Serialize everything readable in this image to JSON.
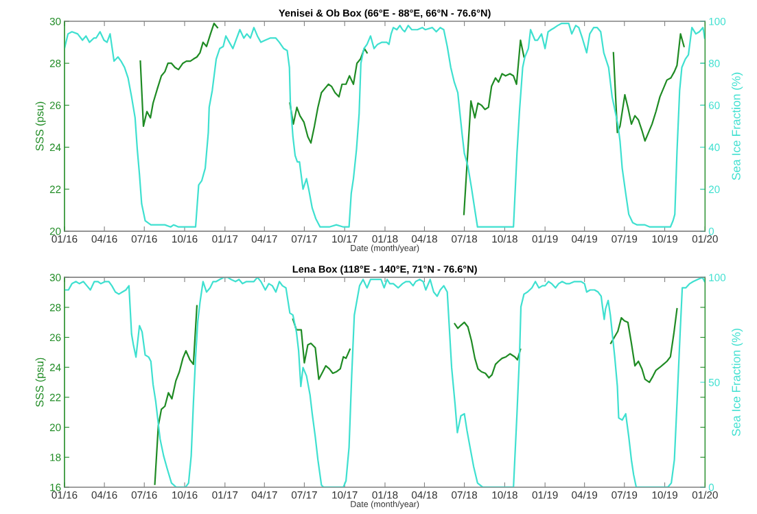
{
  "chart_data": [
    {
      "type": "line",
      "title": "Yenisei & Ob Box (66°E - 88°E, 66°N - 76.6°N)",
      "xlabel": "Date (month/year)",
      "ylabel": "SSS (psu)",
      "y2label": "Sea Ice Fraction (%)",
      "xlim": [
        "2016-01-01",
        "2020-01-01"
      ],
      "xticks": [
        {
          "value": "2016-01-01",
          "label": "01/16"
        },
        {
          "value": "2016-04-01",
          "label": "04/16"
        },
        {
          "value": "2016-07-01",
          "label": "07/16"
        },
        {
          "value": "2016-10-01",
          "label": "10/16"
        },
        {
          "value": "2017-01-01",
          "label": "01/17"
        },
        {
          "value": "2017-04-01",
          "label": "04/17"
        },
        {
          "value": "2017-07-01",
          "label": "07/17"
        },
        {
          "value": "2017-10-01",
          "label": "10/17"
        },
        {
          "value": "2018-01-01",
          "label": "01/18"
        },
        {
          "value": "2018-04-01",
          "label": "04/18"
        },
        {
          "value": "2018-07-01",
          "label": "07/18"
        },
        {
          "value": "2018-10-01",
          "label": "10/18"
        },
        {
          "value": "2019-01-01",
          "label": "01/19"
        },
        {
          "value": "2019-04-01",
          "label": "04/19"
        },
        {
          "value": "2019-07-01",
          "label": "07/19"
        },
        {
          "value": "2019-10-01",
          "label": "10/19"
        },
        {
          "value": "2020-01-01",
          "label": "01/20"
        }
      ],
      "ylim": [
        20,
        30
      ],
      "yticks": [
        20,
        22,
        24,
        26,
        28,
        30
      ],
      "y2lim": [
        0,
        100
      ],
      "y2ticks": [
        0,
        20,
        40,
        60,
        80,
        100
      ],
      "series": [
        {
          "color": "#1f8b24",
          "x": [
            "2016-06-22",
            "2016-06-29",
            "2016-07-07",
            "2016-07-15",
            "2016-07-21",
            "2016-07-31",
            "2016-08-09",
            "2016-08-17",
            "2016-08-24",
            "2016-09-01",
            "2016-09-09",
            "2016-09-17",
            "2016-09-27",
            "2016-10-05",
            "2016-10-14",
            "2016-10-21",
            "2016-10-29",
            "2016-11-05",
            "2016-11-12",
            "2016-11-20",
            "2016-11-29",
            "2016-12-07",
            "2016-12-15",
            "2017-03-01",
            "2017-05-29",
            "2017-06-06",
            "2017-06-14",
            "2017-06-21",
            "2017-06-30",
            "2017-07-09",
            "2017-07-16",
            "2017-07-24",
            "2017-08-01",
            "2017-08-09",
            "2017-08-17",
            "2017-08-25",
            "2017-09-01",
            "2017-09-09",
            "2017-09-18",
            "2017-09-25",
            "2017-10-04",
            "2017-10-12",
            "2017-10-21",
            "2017-10-29",
            "2017-11-06",
            "2017-11-15",
            "2017-11-21",
            "2018-03-01",
            "2018-06-30",
            "2018-07-16",
            "2018-07-25",
            "2018-08-01",
            "2018-08-09",
            "2018-08-17",
            "2018-08-25",
            "2018-09-01",
            "2018-09-10",
            "2018-09-17",
            "2018-09-25",
            "2018-10-03",
            "2018-10-13",
            "2018-10-21",
            "2018-10-28",
            "2018-11-06",
            "2018-11-14",
            "2019-03-01",
            "2019-06-06",
            "2019-06-15",
            "2019-06-21",
            "2019-07-02",
            "2019-07-09",
            "2019-07-17",
            "2019-07-25",
            "2019-08-02",
            "2019-08-10",
            "2019-08-17",
            "2019-08-25",
            "2019-09-02",
            "2019-09-11",
            "2019-09-20",
            "2019-09-28",
            "2019-10-06",
            "2019-10-15",
            "2019-10-23",
            "2019-10-29",
            "2019-11-06",
            "2019-11-14"
          ],
          "values": [
            28.1,
            25.0,
            25.7,
            25.4,
            26.1,
            26.8,
            27.4,
            27.6,
            28.0,
            28.0,
            27.8,
            27.7,
            28.0,
            28.1,
            28.1,
            28.2,
            28.3,
            28.5,
            29.0,
            28.8,
            29.4,
            29.9,
            29.7,
            null,
            26.1,
            25.1,
            25.9,
            25.5,
            25.2,
            24.5,
            24.2,
            25.0,
            25.9,
            26.6,
            26.8,
            27.0,
            26.9,
            26.6,
            26.4,
            27.0,
            27.0,
            27.4,
            27.0,
            28.0,
            28.2,
            28.7,
            28.5,
            null,
            20.8,
            26.2,
            25.4,
            26.1,
            26.0,
            25.8,
            25.9,
            26.9,
            27.3,
            27.1,
            27.5,
            27.4,
            27.5,
            27.4,
            27.0,
            29.1,
            28.3,
            null,
            28.5,
            24.7,
            25.0,
            26.5,
            25.9,
            25.1,
            25.5,
            25.3,
            24.8,
            24.3,
            24.7,
            25.1,
            25.7,
            26.4,
            26.8,
            27.2,
            27.3,
            27.6,
            27.9,
            29.4,
            28.8
          ]
        },
        {
          "color": "#3fe0d0",
          "axis": "y2",
          "x": [
            "2016-01-01",
            "2016-01-09",
            "2016-01-18",
            "2016-01-31",
            "2016-02-11",
            "2016-02-19",
            "2016-02-27",
            "2016-03-08",
            "2016-03-13",
            "2016-03-22",
            "2016-03-31",
            "2016-04-07",
            "2016-04-14",
            "2016-04-23",
            "2016-05-02",
            "2016-05-09",
            "2016-05-17",
            "2016-05-25",
            "2016-06-02",
            "2016-06-10",
            "2016-06-15",
            "2016-06-20",
            "2016-06-25",
            "2016-07-03",
            "2016-07-16",
            "2016-08-01",
            "2016-08-17",
            "2016-08-30",
            "2016-09-06",
            "2016-09-17",
            "2016-10-03",
            "2016-10-13",
            "2016-10-26",
            "2016-11-02",
            "2016-11-09",
            "2016-11-17",
            "2016-11-24",
            "2016-11-26",
            "2016-12-03",
            "2016-12-12",
            "2016-12-20",
            "2016-12-28",
            "2017-01-03",
            "2017-01-11",
            "2017-01-19",
            "2017-01-26",
            "2017-02-04",
            "2017-02-13",
            "2017-02-20",
            "2017-02-28",
            "2017-03-08",
            "2017-03-16",
            "2017-03-24",
            "2017-04-03",
            "2017-04-14",
            "2017-04-27",
            "2017-05-05",
            "2017-05-15",
            "2017-05-23",
            "2017-05-28",
            "2017-05-30",
            "2017-06-05",
            "2017-06-10",
            "2017-06-15",
            "2017-06-20",
            "2017-06-28",
            "2017-07-06",
            "2017-07-11",
            "2017-07-19",
            "2017-07-27",
            "2017-08-06",
            "2017-08-27",
            "2017-09-12",
            "2017-09-28",
            "2017-10-11",
            "2017-10-16",
            "2017-10-21",
            "2017-10-28",
            "2017-11-03",
            "2017-11-07",
            "2017-11-14",
            "2017-11-21",
            "2017-11-29",
            "2017-12-07",
            "2017-12-15",
            "2017-12-25",
            "2018-01-05",
            "2018-01-10",
            "2018-01-15",
            "2018-01-20",
            "2018-01-28",
            "2018-02-04",
            "2018-02-10",
            "2018-02-15",
            "2018-02-23",
            "2018-03-03",
            "2018-03-16",
            "2018-03-27",
            "2018-04-03",
            "2018-04-19",
            "2018-04-28",
            "2018-05-07",
            "2018-05-15",
            "2018-05-23",
            "2018-05-31",
            "2018-06-08",
            "2018-06-16",
            "2018-06-21",
            "2018-06-26",
            "2018-07-01",
            "2018-07-09",
            "2018-07-17",
            "2018-07-25",
            "2018-07-31",
            "2018-08-17",
            "2018-09-07",
            "2018-09-28",
            "2018-10-21",
            "2018-10-29",
            "2018-11-04",
            "2018-11-11",
            "2018-11-16",
            "2018-11-24",
            "2018-11-29",
            "2018-12-09",
            "2018-12-15",
            "2018-12-24",
            "2019-01-01",
            "2019-01-08",
            "2019-01-15",
            "2019-01-23",
            "2019-01-30",
            "2019-02-08",
            "2019-02-24",
            "2019-03-03",
            "2019-03-12",
            "2019-03-19",
            "2019-03-27",
            "2019-04-06",
            "2019-04-13",
            "2019-04-22",
            "2019-04-30",
            "2019-05-08",
            "2019-05-15",
            "2019-05-26",
            "2019-06-03",
            "2019-06-11",
            "2019-06-16",
            "2019-06-21",
            "2019-06-26",
            "2019-07-04",
            "2019-07-11",
            "2019-07-20",
            "2019-07-30",
            "2019-08-17",
            "2019-08-28",
            "2019-09-12",
            "2019-10-03",
            "2019-10-14",
            "2019-10-20",
            "2019-10-24",
            "2019-10-29",
            "2019-11-04",
            "2019-11-09",
            "2019-11-17",
            "2019-11-24",
            "2019-12-02",
            "2019-12-11",
            "2019-12-19",
            "2019-12-27",
            "2019-12-29",
            "2019-12-31"
          ],
          "values": [
            87,
            94,
            95,
            94,
            91,
            93,
            90,
            92,
            92,
            95,
            91,
            90,
            94,
            81,
            83,
            81,
            78,
            73,
            64,
            54,
            39,
            27,
            13,
            5,
            3,
            3,
            3,
            2,
            3,
            2,
            2,
            2,
            2,
            22,
            24,
            30,
            47,
            59,
            67,
            82,
            87,
            88,
            93,
            90,
            87,
            91,
            96,
            92,
            94,
            92,
            97,
            93,
            90,
            91,
            92,
            92,
            90,
            87,
            86,
            78,
            62,
            45,
            36,
            33,
            33,
            20,
            25,
            20,
            11,
            6,
            2,
            2,
            3,
            2,
            2,
            18,
            25,
            39,
            56,
            80,
            87,
            89,
            93,
            87,
            89,
            90,
            90,
            89,
            94,
            97,
            96,
            98,
            96,
            95,
            98,
            96,
            96,
            97,
            96,
            97,
            95,
            97,
            96,
            88,
            78,
            71,
            66,
            56,
            46,
            37,
            31,
            21,
            10,
            2,
            2,
            2,
            2,
            2,
            37,
            58,
            78,
            83,
            87,
            96,
            91,
            91,
            94,
            87,
            95,
            96,
            97,
            98,
            99,
            99,
            94,
            98,
            97,
            92,
            85,
            94,
            97,
            97,
            95,
            85,
            78,
            64,
            56,
            51,
            43,
            30,
            18,
            8,
            4,
            3,
            3,
            2,
            2,
            2,
            2,
            5,
            8,
            38,
            67,
            78,
            82,
            84,
            97,
            94,
            95,
            97,
            95,
            92
          ]
        }
      ]
    },
    {
      "type": "line",
      "title": "Lena Box (118°E - 140°E, 71°N - 76.6°N)",
      "xlabel": "Date (month/year)",
      "ylabel": "SSS (psu)",
      "y2label": "Sea Ice Fraction (%)",
      "xlim": [
        "2016-01-01",
        "2020-01-01"
      ],
      "xticks": [
        {
          "value": "2016-01-01",
          "label": "01/16"
        },
        {
          "value": "2016-04-01",
          "label": "04/16"
        },
        {
          "value": "2016-07-01",
          "label": "07/16"
        },
        {
          "value": "2016-10-01",
          "label": "10/16"
        },
        {
          "value": "2017-01-01",
          "label": "01/17"
        },
        {
          "value": "2017-04-01",
          "label": "04/17"
        },
        {
          "value": "2017-07-01",
          "label": "07/17"
        },
        {
          "value": "2017-10-01",
          "label": "10/17"
        },
        {
          "value": "2018-01-01",
          "label": "01/18"
        },
        {
          "value": "2018-04-01",
          "label": "04/18"
        },
        {
          "value": "2018-07-01",
          "label": "07/18"
        },
        {
          "value": "2018-10-01",
          "label": "10/18"
        },
        {
          "value": "2019-01-01",
          "label": "01/19"
        },
        {
          "value": "2019-04-01",
          "label": "04/19"
        },
        {
          "value": "2019-07-01",
          "label": "07/19"
        },
        {
          "value": "2019-10-01",
          "label": "10/19"
        },
        {
          "value": "2020-01-01",
          "label": "01/20"
        }
      ],
      "ylim": [
        16,
        30
      ],
      "yticks": [
        16,
        18,
        20,
        22,
        24,
        26,
        28,
        30
      ],
      "y2lim": [
        0,
        100
      ],
      "y2ticks": [
        0,
        50,
        100
      ],
      "series": [
        {
          "color": "#1f8b24",
          "x": [
            "2016-07-25",
            "2016-08-02",
            "2016-08-09",
            "2016-08-17",
            "2016-08-25",
            "2016-09-02",
            "2016-09-11",
            "2016-09-19",
            "2016-09-27",
            "2016-10-04",
            "2016-10-13",
            "2016-10-21",
            "2016-10-29",
            "2017-03-01",
            "2017-06-05",
            "2017-06-13",
            "2017-06-24",
            "2017-07-01",
            "2017-07-09",
            "2017-07-16",
            "2017-07-26",
            "2017-08-03",
            "2017-08-12",
            "2017-08-19",
            "2017-08-27",
            "2017-09-04",
            "2017-09-12",
            "2017-09-21",
            "2017-09-28",
            "2017-10-04",
            "2017-10-13",
            "2018-03-01",
            "2018-06-09",
            "2018-06-16",
            "2018-06-23",
            "2018-07-01",
            "2018-07-09",
            "2018-07-17",
            "2018-07-25",
            "2018-08-01",
            "2018-08-09",
            "2018-08-18",
            "2018-08-26",
            "2018-09-02",
            "2018-09-10",
            "2018-09-17",
            "2018-09-25",
            "2018-10-04",
            "2018-10-13",
            "2018-10-24",
            "2018-10-30",
            "2018-11-06",
            "2019-03-01",
            "2019-05-31",
            "2019-06-08",
            "2019-06-16",
            "2019-06-24",
            "2019-07-01",
            "2019-07-09",
            "2019-07-17",
            "2019-07-25",
            "2019-08-02",
            "2019-08-10",
            "2019-08-17",
            "2019-08-27",
            "2019-09-04",
            "2019-09-11",
            "2019-09-20",
            "2019-09-28",
            "2019-10-06",
            "2019-10-14",
            "2019-10-22",
            "2019-10-29"
          ],
          "values": [
            16.2,
            20.1,
            21.2,
            21.4,
            22.3,
            21.9,
            23.1,
            23.7,
            24.6,
            25.1,
            24.5,
            24.2,
            28.1,
            null,
            27.2,
            26.5,
            26.5,
            24.3,
            25.5,
            25.6,
            25.3,
            23.2,
            23.7,
            24.1,
            23.9,
            23.6,
            23.7,
            23.9,
            24.7,
            24.6,
            25.2,
            null,
            26.9,
            26.6,
            26.8,
            27.0,
            26.7,
            25.8,
            24.6,
            23.9,
            23.7,
            23.6,
            23.3,
            23.5,
            24.2,
            24.4,
            24.6,
            24.7,
            24.9,
            24.7,
            24.5,
            25.2,
            null,
            25.6,
            26.0,
            26.4,
            27.3,
            27.1,
            27.0,
            25.6,
            24.1,
            24.4,
            23.9,
            23.2,
            23.0,
            23.4,
            23.8,
            24.0,
            24.2,
            24.4,
            24.7,
            26.3,
            27.9
          ]
        },
        {
          "color": "#3fe0d0",
          "axis": "y2",
          "x": [
            "2016-01-01",
            "2016-01-10",
            "2016-01-18",
            "2016-01-27",
            "2016-02-04",
            "2016-02-13",
            "2016-02-21",
            "2016-02-29",
            "2016-03-09",
            "2016-03-17",
            "2016-03-24",
            "2016-04-03",
            "2016-04-11",
            "2016-04-18",
            "2016-04-26",
            "2016-05-04",
            "2016-05-12",
            "2016-05-20",
            "2016-05-27",
            "2016-06-02",
            "2016-06-06",
            "2016-06-12",
            "2016-06-20",
            "2016-06-26",
            "2016-07-03",
            "2016-07-11",
            "2016-07-16",
            "2016-07-21",
            "2016-07-27",
            "2016-08-01",
            "2016-08-06",
            "2016-08-14",
            "2016-08-22",
            "2016-09-01",
            "2016-09-12",
            "2016-10-03",
            "2016-10-10",
            "2016-10-16",
            "2016-10-21",
            "2016-10-26",
            "2016-10-31",
            "2016-11-05",
            "2016-11-12",
            "2016-11-20",
            "2016-11-28",
            "2016-12-05",
            "2016-12-12",
            "2016-12-20",
            "2016-12-29",
            "2017-01-07",
            "2017-01-15",
            "2017-01-25",
            "2017-02-02",
            "2017-02-10",
            "2017-02-19",
            "2017-02-28",
            "2017-03-08",
            "2017-03-16",
            "2017-03-24",
            "2017-04-03",
            "2017-04-11",
            "2017-04-19",
            "2017-04-27",
            "2017-05-05",
            "2017-05-12",
            "2017-05-20",
            "2017-05-29",
            "2017-06-05",
            "2017-06-13",
            "2017-06-18",
            "2017-06-23",
            "2017-06-28",
            "2017-07-06",
            "2017-07-14",
            "2017-07-19",
            "2017-07-26",
            "2017-08-01",
            "2017-08-09",
            "2017-08-14",
            "2017-09-28",
            "2017-10-04",
            "2017-10-11",
            "2017-10-17",
            "2017-10-23",
            "2017-10-29",
            "2017-11-04",
            "2017-11-12",
            "2017-11-21",
            "2017-11-29",
            "2017-12-10",
            "2017-12-23",
            "2017-12-30",
            "2018-01-06",
            "2018-01-12",
            "2018-01-20",
            "2018-01-31",
            "2018-02-10",
            "2018-02-18",
            "2018-02-26",
            "2018-03-06",
            "2018-03-12",
            "2018-03-21",
            "2018-03-29",
            "2018-04-04",
            "2018-04-14",
            "2018-04-22",
            "2018-04-30",
            "2018-05-07",
            "2018-05-15",
            "2018-05-23",
            "2018-05-28",
            "2018-06-02",
            "2018-06-10",
            "2018-06-15",
            "2018-06-23",
            "2018-07-01",
            "2018-07-07",
            "2018-07-14",
            "2018-07-22",
            "2018-07-31",
            "2018-08-12",
            "2018-10-21",
            "2018-10-29",
            "2018-11-04",
            "2018-11-07",
            "2018-11-14",
            "2018-11-22",
            "2018-12-02",
            "2018-12-10",
            "2018-12-18",
            "2018-12-26",
            "2019-01-01",
            "2019-01-09",
            "2019-01-16",
            "2019-01-25",
            "2019-02-01",
            "2019-02-09",
            "2019-02-18",
            "2019-02-26",
            "2019-03-09",
            "2019-03-16",
            "2019-03-24",
            "2019-04-01",
            "2019-04-06",
            "2019-04-14",
            "2019-04-24",
            "2019-05-02",
            "2019-05-09",
            "2019-05-12",
            "2019-05-16",
            "2019-05-19",
            "2019-05-25",
            "2019-05-30",
            "2019-06-04",
            "2019-06-09",
            "2019-06-15",
            "2019-06-18",
            "2019-06-26",
            "2019-07-04",
            "2019-07-11",
            "2019-07-17",
            "2019-07-22",
            "2019-07-28",
            "2019-10-08",
            "2019-10-16",
            "2019-10-23",
            "2019-10-29",
            "2019-11-05",
            "2019-11-10",
            "2019-11-18",
            "2019-11-27",
            "2019-12-05",
            "2019-12-15",
            "2019-12-26",
            "2019-12-31"
          ],
          "values": [
            94,
            94,
            97,
            98,
            97,
            98,
            96,
            94,
            98,
            98,
            97,
            98,
            98,
            96,
            93,
            92,
            93,
            94,
            96,
            73,
            68,
            62,
            77,
            74,
            63,
            62,
            60,
            49,
            41,
            32,
            23,
            15,
            9,
            2,
            0,
            0,
            2,
            15,
            40,
            62,
            79,
            88,
            98,
            93,
            95,
            98,
            98,
            99,
            100,
            100,
            99,
            98,
            99,
            97,
            98,
            98,
            98,
            100,
            98,
            94,
            97,
            96,
            93,
            98,
            96,
            95,
            83,
            82,
            74,
            65,
            48,
            57,
            53,
            44,
            35,
            24,
            13,
            1,
            0,
            0,
            3,
            19,
            53,
            82,
            89,
            96,
            99,
            95,
            99,
            99,
            99,
            95,
            99,
            97,
            97,
            95,
            97,
            98,
            98,
            96,
            98,
            99,
            98,
            94,
            99,
            93,
            91,
            94,
            96,
            93,
            75,
            57,
            39,
            26,
            34,
            35,
            27,
            19,
            10,
            2,
            0,
            0,
            35,
            64,
            86,
            92,
            93,
            95,
            98,
            95,
            96,
            96,
            98,
            97,
            95,
            97,
            98,
            97,
            97,
            98,
            98,
            98,
            97,
            93,
            94,
            94,
            93,
            91,
            86,
            80,
            85,
            89,
            82,
            72,
            62,
            48,
            33,
            32,
            35,
            24,
            13,
            6,
            0,
            0,
            2,
            13,
            40,
            73,
            95,
            95,
            97,
            98,
            99,
            100,
            98
          ]
        }
      ]
    }
  ]
}
